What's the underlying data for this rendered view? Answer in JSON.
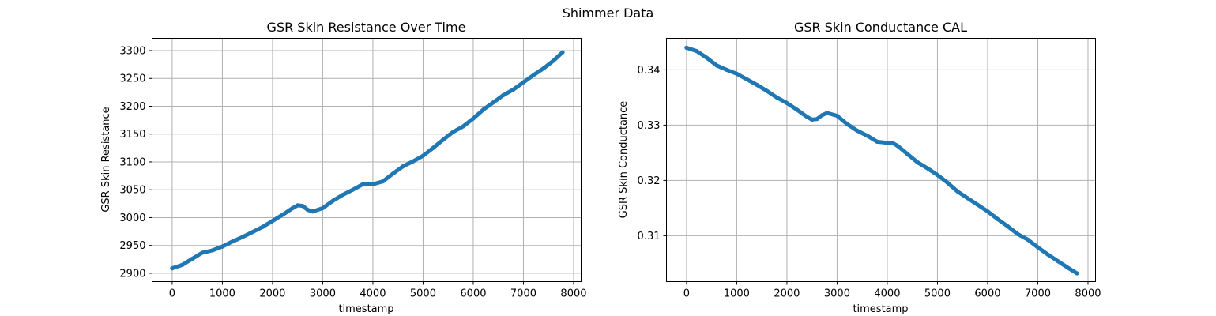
{
  "figure": {
    "suptitle": "Shimmer Data"
  },
  "chart_data": [
    {
      "type": "line",
      "title": "GSR Skin Resistance Over Time",
      "xlabel": "timestamp",
      "ylabel": "GSR Skin Resistance",
      "xlim": [
        -400,
        8150
      ],
      "ylim": [
        2885,
        3322
      ],
      "xticks": [
        0,
        1000,
        2000,
        3000,
        4000,
        5000,
        6000,
        7000,
        8000
      ],
      "yticks": [
        2900,
        2950,
        3000,
        3050,
        3100,
        3150,
        3200,
        3250,
        3300
      ],
      "grid": true,
      "color": "#1f77b4",
      "series": [
        {
          "x": [
            0,
            200,
            400,
            600,
            800,
            1000,
            1200,
            1400,
            1600,
            1800,
            2000,
            2200,
            2400,
            2500,
            2600,
            2700,
            2800,
            3000,
            3200,
            3400,
            3600,
            3800,
            4000,
            4200,
            4400,
            4600,
            4800,
            5000,
            5200,
            5400,
            5600,
            5800,
            6000,
            6200,
            6400,
            6600,
            6800,
            7000,
            7200,
            7400,
            7600,
            7780
          ],
          "y": [
            2909,
            2915,
            2926,
            2937,
            2941,
            2948,
            2957,
            2965,
            2974,
            2983,
            2994,
            3005,
            3017,
            3022,
            3021,
            3014,
            3011,
            3017,
            3030,
            3041,
            3050,
            3060,
            3060,
            3065,
            3079,
            3092,
            3101,
            3111,
            3125,
            3140,
            3154,
            3164,
            3178,
            3194,
            3207,
            3220,
            3230,
            3243,
            3256,
            3268,
            3282,
            3297
          ]
        }
      ]
    },
    {
      "type": "line",
      "title": "GSR Skin Conductance CAL",
      "xlabel": "timestamp",
      "ylabel": "GSR Skin Conductance",
      "xlim": [
        -400,
        8150
      ],
      "ylim": [
        0.3017,
        0.3457
      ],
      "xticks": [
        0,
        1000,
        2000,
        3000,
        4000,
        5000,
        6000,
        7000,
        8000
      ],
      "yticks": [
        0.31,
        0.32,
        0.33,
        0.34
      ],
      "grid": true,
      "color": "#1f77b4",
      "series": [
        {
          "x": [
            0,
            200,
            400,
            600,
            800,
            1000,
            1200,
            1400,
            1600,
            1800,
            2000,
            2200,
            2400,
            2500,
            2600,
            2700,
            2800,
            3000,
            3200,
            3400,
            3600,
            3800,
            4000,
            4100,
            4200,
            4400,
            4600,
            4800,
            5000,
            5200,
            5400,
            5600,
            5800,
            6000,
            6200,
            6400,
            6600,
            6800,
            7000,
            7200,
            7400,
            7600,
            7780
          ],
          "y": [
            0.344,
            0.3434,
            0.3422,
            0.3408,
            0.34,
            0.3393,
            0.3383,
            0.3373,
            0.3362,
            0.335,
            0.334,
            0.3328,
            0.3315,
            0.331,
            0.3311,
            0.3318,
            0.3322,
            0.3317,
            0.3302,
            0.329,
            0.3281,
            0.327,
            0.3268,
            0.3268,
            0.3263,
            0.3248,
            0.3233,
            0.3222,
            0.321,
            0.3196,
            0.318,
            0.3168,
            0.3156,
            0.3144,
            0.313,
            0.3117,
            0.3103,
            0.3093,
            0.3079,
            0.3066,
            0.3054,
            0.3042,
            0.3032
          ]
        }
      ]
    }
  ]
}
